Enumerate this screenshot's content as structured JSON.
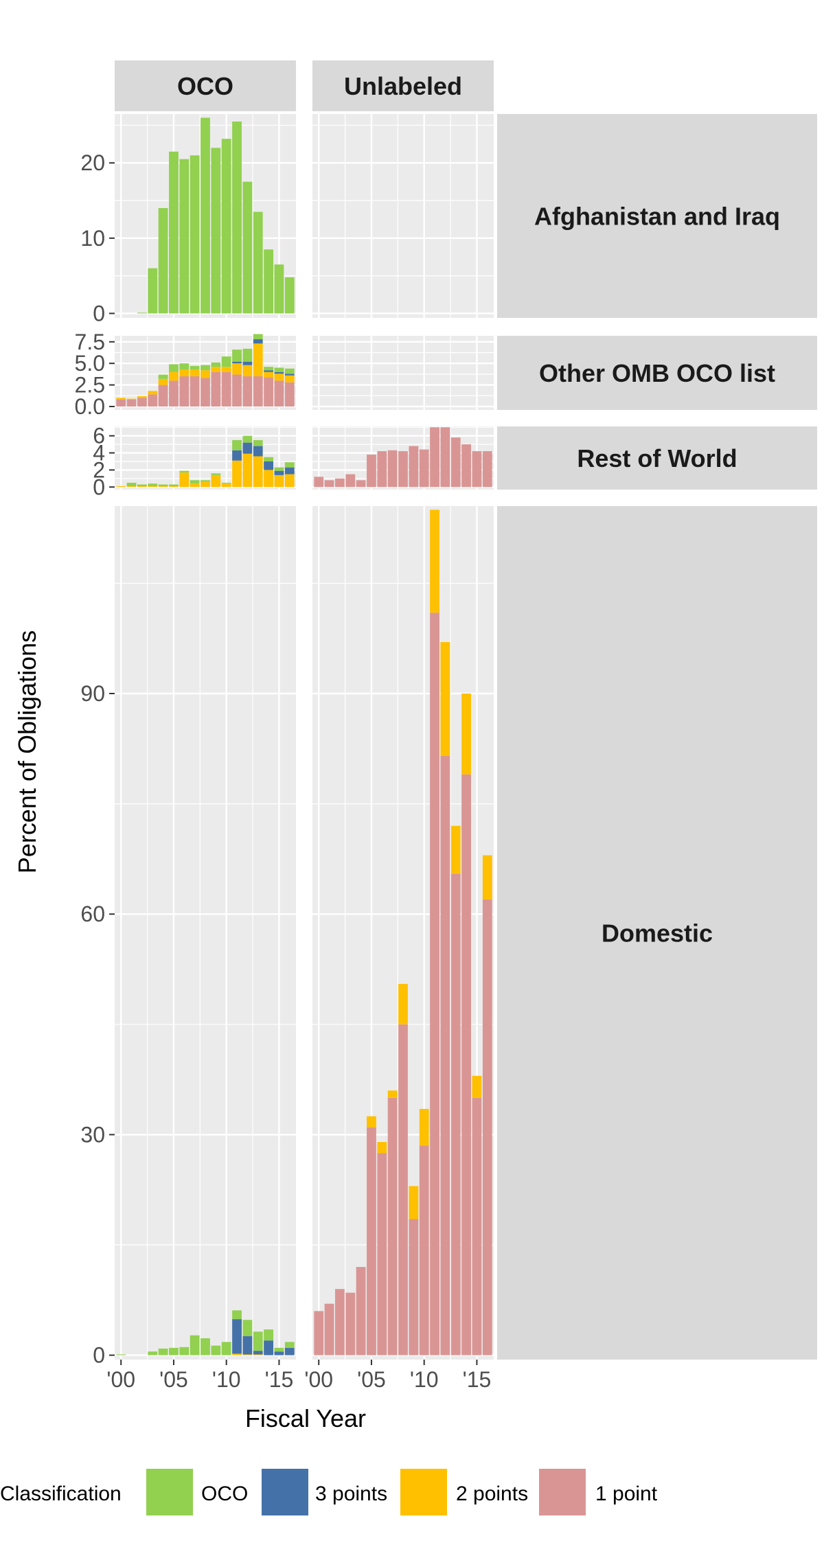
{
  "chart_data": {
    "type": "bar",
    "stacked": true,
    "xlabel": "Fiscal Year",
    "ylabel": "Percent of Obligations",
    "x": [
      2000,
      2001,
      2002,
      2003,
      2004,
      2005,
      2006,
      2007,
      2008,
      2009,
      2010,
      2011,
      2012,
      2013,
      2014,
      2015,
      2016
    ],
    "x_tick_values": [
      2000,
      2005,
      2010,
      2015
    ],
    "x_tick_labels": [
      "'00",
      "'05",
      "'10",
      "'15"
    ],
    "columns": [
      "OCO",
      "Unlabeled"
    ],
    "legend": {
      "title": "Classification",
      "position": "bottom",
      "entries": [
        {
          "key": "OCO",
          "label": "OCO",
          "color": "#92D050"
        },
        {
          "key": "p3",
          "label": "3 points",
          "color": "#4472A8"
        },
        {
          "key": "p2",
          "label": "2 points",
          "color": "#FFC000"
        },
        {
          "key": "p1",
          "label": "1 point",
          "color": "#D99594"
        }
      ]
    },
    "stack_order": [
      "p1",
      "p2",
      "p3",
      "OCO"
    ],
    "rows": [
      {
        "label": "Afghanistan and Iraq",
        "ylim": [
          -0.6,
          26.5
        ],
        "y_ticks": [
          0,
          10,
          20
        ],
        "y_tick_labels": [
          "0",
          "10",
          "20"
        ],
        "panels": [
          {
            "column": "OCO",
            "series": {
              "OCO": [
                0,
                0,
                0.1,
                6,
                14,
                21.5,
                20.5,
                21,
                26,
                22,
                23.2,
                25.5,
                17.5,
                13.5,
                8.5,
                6.5,
                4.8
              ]
            }
          },
          {
            "column": "Unlabeled",
            "series": {}
          }
        ]
      },
      {
        "label": "Other OMB OCO list",
        "ylim": [
          -0.4,
          8.2
        ],
        "y_ticks": [
          0,
          2.5,
          5,
          7.5
        ],
        "y_tick_labels": [
          "0.0",
          "2.5",
          "5.0",
          "7.5"
        ],
        "panels": [
          {
            "column": "OCO",
            "series": {
              "p1": [
                0.8,
                0.8,
                1.0,
                1.4,
                2.5,
                3.0,
                3.5,
                3.5,
                3.3,
                4.0,
                4.0,
                3.7,
                3.5,
                3.5,
                3.4,
                3.0,
                2.8
              ],
              "p2": [
                0.2,
                0.1,
                0.2,
                0.4,
                0.7,
                1.0,
                0.8,
                0.8,
                0.9,
                0.6,
                0.6,
                1.3,
                1.3,
                3.8,
                0.6,
                0.8,
                0.8
              ],
              "p3": [
                0,
                0,
                0,
                0,
                0,
                0,
                0,
                0,
                0,
                0,
                0,
                0.2,
                0.4,
                0.5,
                0.2,
                0.2,
                0.2
              ],
              "OCO": [
                0,
                0,
                0,
                0,
                0.5,
                0.9,
                0.7,
                0.4,
                0.6,
                0.5,
                1.2,
                1.4,
                1.5,
                0.6,
                0.4,
                0.5,
                0.6
              ]
            }
          },
          {
            "column": "Unlabeled",
            "series": {}
          }
        ]
      },
      {
        "label": "Rest of World",
        "ylim": [
          -0.3,
          7.1
        ],
        "y_ticks": [
          0,
          2,
          4,
          6
        ],
        "y_tick_labels": [
          "0",
          "2",
          "4",
          "6"
        ],
        "panels": [
          {
            "column": "OCO",
            "series": {
              "p1": [
                0,
                0,
                0,
                0,
                0,
                0,
                0,
                0,
                0,
                0,
                0,
                0,
                0,
                0,
                0,
                0,
                0
              ],
              "p2": [
                0.1,
                0.1,
                0.1,
                0.1,
                0.1,
                0.1,
                1.7,
                0.4,
                0.6,
                1.4,
                0.4,
                3.1,
                3.9,
                3.6,
                2.0,
                1.4,
                1.5
              ],
              "p3": [
                0,
                0,
                0,
                0,
                0,
                0,
                0,
                0,
                0,
                0,
                0,
                1.2,
                1.3,
                1.2,
                1.0,
                0.5,
                0.8
              ],
              "OCO": [
                0,
                0.4,
                0.2,
                0.3,
                0.2,
                0.2,
                0.2,
                0.4,
                0.2,
                0.2,
                0.1,
                1.2,
                0.8,
                0.7,
                0.5,
                0.4,
                0.6
              ]
            }
          },
          {
            "column": "Unlabeled",
            "series": {
              "p1": [
                1.2,
                0.8,
                1.0,
                1.5,
                0.8,
                3.8,
                4.2,
                4.3,
                4.2,
                4.8,
                4.4,
                7.0,
                7.0,
                5.8,
                5.0,
                4.2,
                4.2
              ],
              "p2": [
                0,
                0,
                0,
                0,
                0,
                0,
                0,
                0,
                0,
                0,
                0,
                0,
                0,
                0,
                0,
                0,
                0
              ]
            }
          }
        ]
      },
      {
        "label": "Domestic",
        "ylim": [
          -0.6,
          115.5
        ],
        "y_ticks": [
          0,
          30,
          60,
          90
        ],
        "y_tick_labels": [
          "0",
          "30",
          "60",
          "90"
        ],
        "panels": [
          {
            "column": "OCO",
            "series": {
              "p1": [
                0,
                0,
                0,
                0,
                0,
                0,
                0,
                0,
                0,
                0,
                0,
                0,
                0,
                0,
                0,
                0,
                0
              ],
              "p2": [
                0,
                0,
                0,
                0,
                0,
                0,
                0,
                0,
                0,
                0,
                0,
                0.2,
                0.1,
                0.1,
                0,
                0,
                0
              ],
              "p3": [
                0,
                0,
                0,
                0,
                0,
                0,
                0,
                0,
                0,
                0,
                0,
                4.7,
                2.5,
                0.5,
                2.0,
                0.5,
                1.0
              ],
              "OCO": [
                0.1,
                0,
                0,
                0.5,
                0.9,
                1.0,
                1.1,
                2.7,
                2.3,
                1.3,
                1.8,
                1.2,
                2.2,
                2.6,
                1.5,
                0.5,
                0.8
              ]
            }
          },
          {
            "column": "Unlabeled",
            "series": {
              "p1": [
                6.0,
                7.0,
                9.0,
                8.5,
                12.0,
                31.0,
                27.5,
                35.0,
                45.0,
                18.5,
                28.5,
                101.0,
                81.5,
                65.5,
                79.0,
                35.0,
                62.0
              ],
              "p2": [
                0,
                0,
                0,
                0,
                0,
                1.5,
                1.5,
                1.0,
                5.5,
                4.5,
                5.0,
                14.0,
                15.5,
                6.5,
                11.0,
                3.0,
                6.0
              ]
            }
          }
        ]
      }
    ]
  }
}
